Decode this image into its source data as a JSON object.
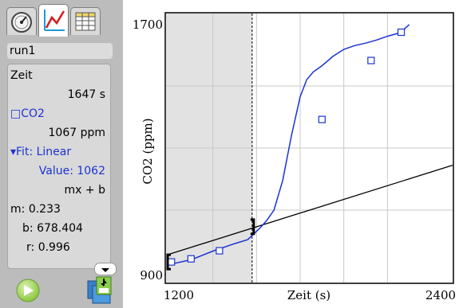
{
  "tabs": [
    {
      "name": "meter",
      "icon": "gauge-icon",
      "active": false
    },
    {
      "name": "graph",
      "icon": "graph-icon",
      "active": true
    },
    {
      "name": "table",
      "icon": "table-icon",
      "active": false
    }
  ],
  "details": {
    "run": "run1",
    "time_label": "Zeit",
    "time_value": "1647 s",
    "sensor_label": "□CO2",
    "sensor_value": "1067 ppm",
    "fit_label": "▾Fit: Linear",
    "fit_value": "Value: 1062",
    "formula": "mx + b",
    "m_label": "m:",
    "m_value": "0.233",
    "b_label": "b:",
    "b_value": "678.404",
    "r_label": "r:",
    "r_value": "0.996"
  },
  "graph": {
    "ylabel": "CO2 (ppm)",
    "xlabel": "Zeit (s)",
    "y_tick_top": "1700",
    "y_tick_bottom": "900",
    "x_tick_left": "1200",
    "x_tick_right": "2400",
    "colors": {
      "data": "#1a33d0",
      "fit": "#000000",
      "selection": "#e2e2e2",
      "grid": "#c8c8c8"
    }
  },
  "chart_data": {
    "type": "line",
    "xlabel": "Zeit (s)",
    "ylabel": "CO2 (ppm)",
    "xlim": [
      1200,
      2400
    ],
    "ylim": [
      900,
      1700
    ],
    "grid": true,
    "series": [
      {
        "name": "CO2",
        "x": [
          1200,
          1300,
          1400,
          1500,
          1560,
          1590,
          1620,
          1647,
          1680,
          1720,
          1760,
          1800,
          1830,
          1860,
          1900,
          1950,
          2000,
          2050,
          2100,
          2150,
          2200,
          2260,
          2300
        ],
        "y": [
          925,
          940,
          968,
          992,
          1005,
          1025,
          1045,
          1067,
          1100,
          1195,
          1340,
          1465,
          1520,
          1545,
          1565,
          1595,
          1618,
          1630,
          1638,
          1648,
          1660,
          1672,
          1698
        ]
      }
    ],
    "fit": {
      "type": "linear",
      "m": 0.233,
      "b": 678.404,
      "x_range": [
        1200,
        2400
      ]
    },
    "markers": [
      {
        "x": 1210,
        "y": 933
      },
      {
        "x": 1300,
        "y": 943
      },
      {
        "x": 1430,
        "y": 969
      },
      {
        "x": 1900,
        "y": 1392
      },
      {
        "x": 2125,
        "y": 1582
      },
      {
        "x": 2263,
        "y": 1673
      }
    ],
    "selection": {
      "x_start": 1200,
      "x_end": 1580
    },
    "cursor_x": 1580
  }
}
